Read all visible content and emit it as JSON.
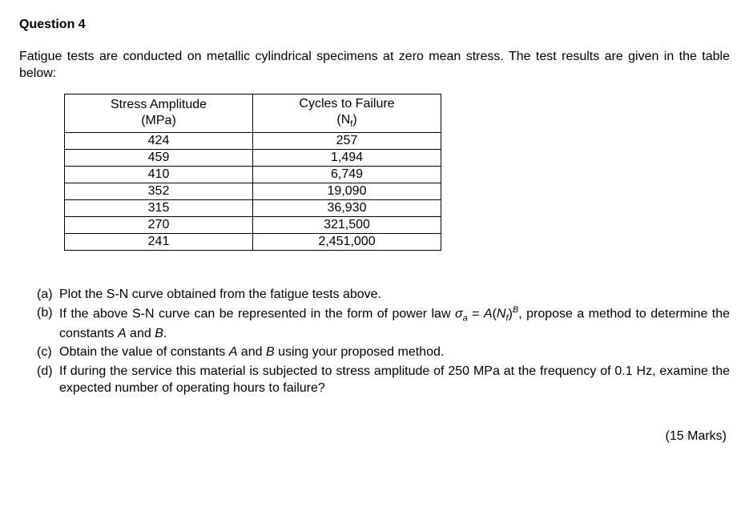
{
  "title": "Question 4",
  "intro": "Fatigue tests are conducted on metallic cylindrical specimens at zero mean stress. The test results are given in the table below:",
  "table": {
    "header_stress_line1": "Stress Amplitude",
    "header_stress_line2": "(MPa)",
    "header_cycles_line1": "Cycles to Failure",
    "header_cycles_line2_pre": "(N",
    "header_cycles_line2_sub": "f",
    "header_cycles_line2_post": ")",
    "rows": [
      {
        "s": "424",
        "n": "257"
      },
      {
        "s": "459",
        "n": "1,494"
      },
      {
        "s": "410",
        "n": "6,749"
      },
      {
        "s": "352",
        "n": "19,090"
      },
      {
        "s": "315",
        "n": "36,930"
      },
      {
        "s": "270",
        "n": "321,500"
      },
      {
        "s": "241",
        "n": "2,451,000"
      }
    ]
  },
  "parts": {
    "a": {
      "lbl": "(a)",
      "txt": "Plot the S-N curve obtained from the fatigue tests above."
    },
    "b": {
      "lbl": "(b)",
      "pre": "If the above S-N curve can be represented in the form of power law ",
      "eq_sigma": "σ",
      "eq_sub_a": "a",
      "eq_eq": " = ",
      "eq_A": "A",
      "eq_open": "(",
      "eq_N": "N",
      "eq_sub_f": "f",
      "eq_close": ")",
      "eq_sup_B": "B",
      "post1": ", propose a method to determine the constants ",
      "A": "A",
      "and": " and ",
      "B": "B",
      "post2": "."
    },
    "c": {
      "lbl": "(c)",
      "pre": "Obtain the value of constants ",
      "A": "A",
      "and": " and ",
      "B": "B",
      "post": " using your proposed method."
    },
    "d": {
      "lbl": "(d)",
      "txt": "If during the service this material is subjected to stress amplitude of 250 MPa at the frequency of 0.1 Hz, examine the expected number of operating hours to failure?"
    }
  },
  "marks": "(15 Marks)"
}
